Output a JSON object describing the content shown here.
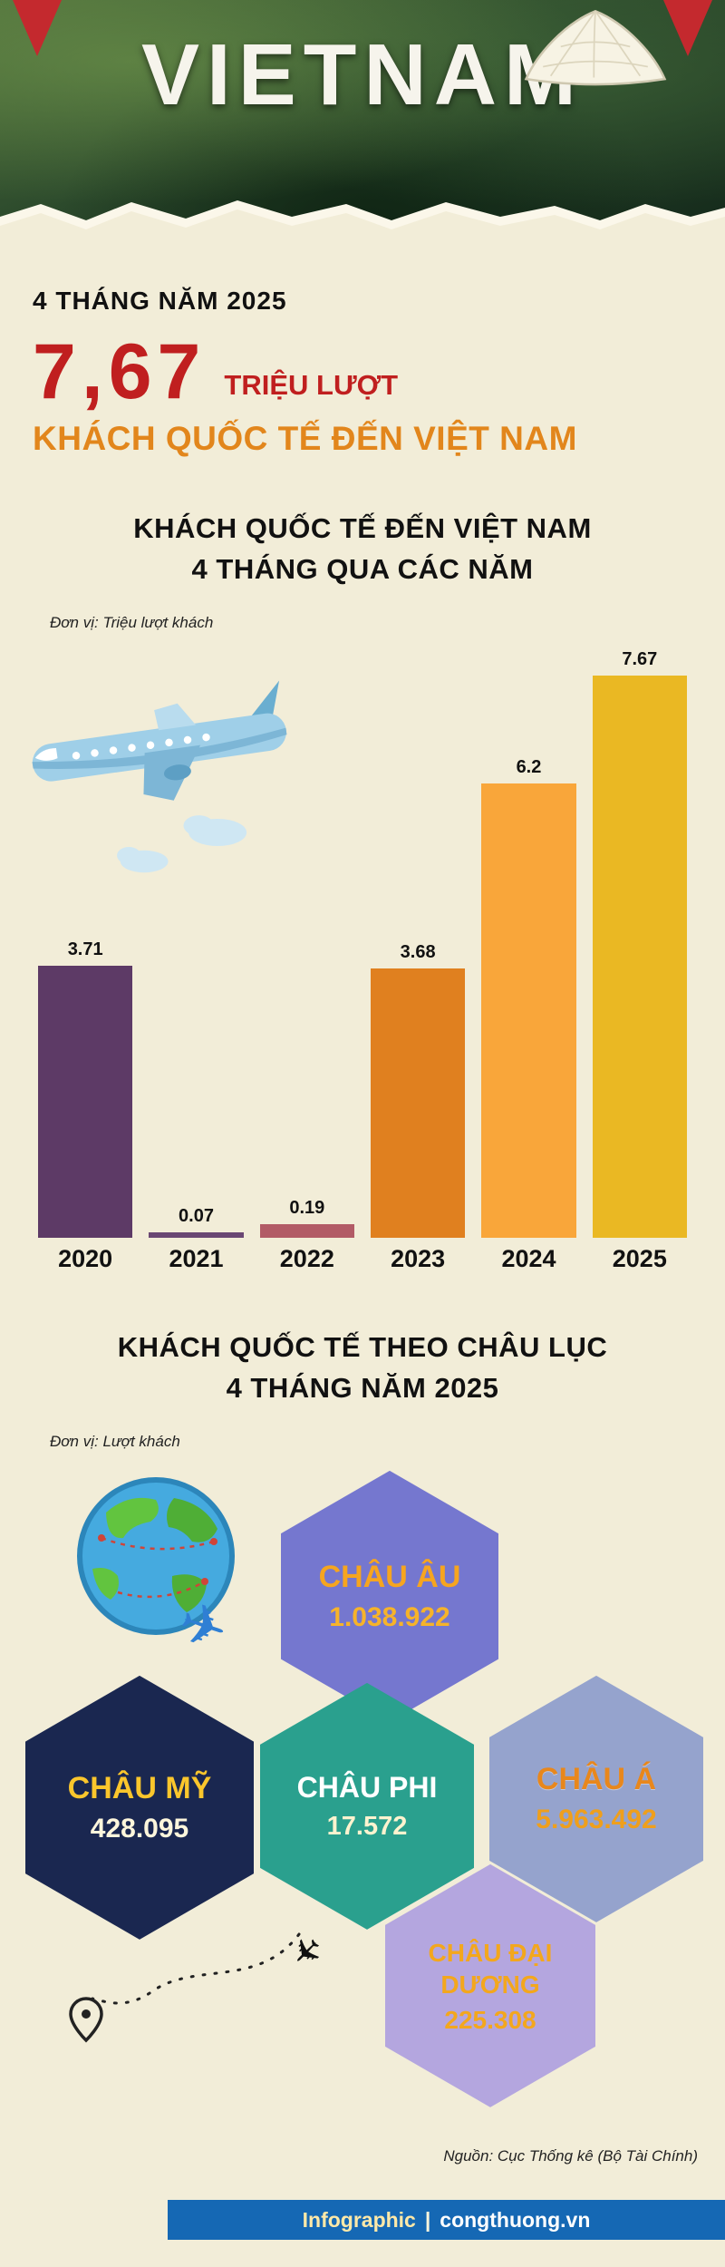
{
  "colors": {
    "background": "#f2edd8",
    "accent_red": "#c01f1f",
    "accent_orange": "#e2861c",
    "footer_blue": "#1568b4"
  },
  "header": {
    "title": "VIETNAM"
  },
  "intro": {
    "kicker": "4 THÁNG NĂM 2025",
    "big_number": "7,67",
    "big_number_unit": "TRIỆU LƯỢT",
    "subtitle": "KHÁCH QUỐC TẾ ĐẾN VIỆT NAM"
  },
  "chart_data": [
    {
      "type": "bar",
      "title": "KHÁCH QUỐC TẾ ĐẾN VIỆT NAM 4 THÁNG QUA CÁC NĂM",
      "title_lines": [
        "KHÁCH QUỐC TẾ ĐẾN VIỆT NAM",
        "4 THÁNG QUA CÁC NĂM"
      ],
      "unit_label": "Đơn vị: Triệu lượt khách",
      "categories": [
        "2020",
        "2021",
        "2022",
        "2023",
        "2024",
        "2025"
      ],
      "values": [
        3.71,
        0.07,
        0.19,
        3.68,
        6.2,
        7.67
      ],
      "value_labels": [
        "3.71",
        "0.07",
        "0.19",
        "3.68",
        "6.2",
        "7.67"
      ],
      "bar_colors": [
        "#5d3a66",
        "#6a4773",
        "#b25b66",
        "#e0801f",
        "#f9a63a",
        "#eab823"
      ],
      "ylim": [
        0,
        8
      ],
      "grid": false,
      "legend": "none"
    },
    {
      "type": "bar",
      "subtype": "hex-map",
      "title": "KHÁCH QUỐC TẾ THEO CHÂU LỤC 4 THÁNG NĂM 2025",
      "title_lines": [
        "KHÁCH QUỐC TẾ THEO CHÂU LỤC",
        "4 THÁNG NĂM 2025"
      ],
      "unit_label": "Đơn vị: Lượt khách",
      "regions": [
        {
          "name": "CHÂU ÂU",
          "value": "1.038.922",
          "value_number": 1038922,
          "color": "#7577cf"
        },
        {
          "name": "CHÂU MỸ",
          "value": "428.095",
          "value_number": 428095,
          "color": "#1a2750"
        },
        {
          "name": "CHÂU PHI",
          "value": "17.572",
          "value_number": 17572,
          "color": "#2aa08e"
        },
        {
          "name": "CHÂU Á",
          "value": "5.963.492",
          "value_number": 5963492,
          "color": "#95a3cd"
        },
        {
          "name": "CHÂU ĐẠI DƯƠNG",
          "value": "225.308",
          "value_number": 225308,
          "color": "#b4a6df"
        }
      ]
    }
  ],
  "footer": {
    "source": "Nguồn: Cục Thống kê (Bộ Tài Chính)",
    "brand": "Infographic",
    "separator": "|",
    "site": "congthuong.vn"
  }
}
